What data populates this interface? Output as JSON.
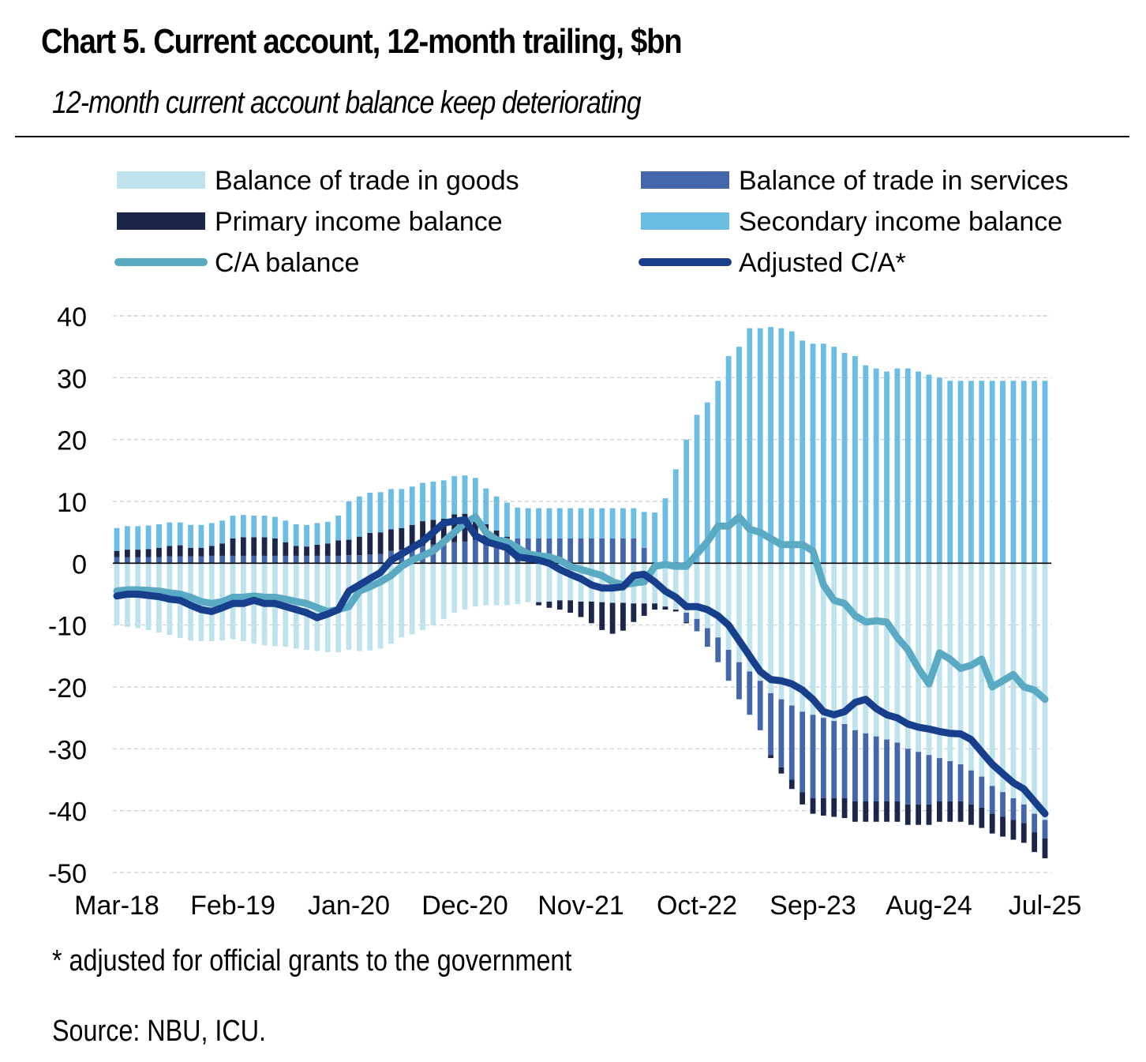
{
  "title": "Chart 5. Current account, 12-month trailing, $bn",
  "subtitle": "12-month current account balance keep deteriorating",
  "footnote": "* adjusted for official grants to the government",
  "source": "Source: NBU, ICU.",
  "chart_data": {
    "type": "bar",
    "stacked": true,
    "title": "Chart 5. Current account, 12-month trailing, $bn",
    "subtitle": "12-month current account balance keep deteriorating",
    "xlabel": "",
    "ylabel": "",
    "ylim": [
      -50,
      40
    ],
    "yticks": [
      40,
      30,
      20,
      10,
      0,
      -10,
      -20,
      -30,
      -40,
      -50
    ],
    "grid": true,
    "legend_position": "top",
    "x_tick_labels": [
      "Mar-18",
      "Feb-19",
      "Jan-20",
      "Dec-20",
      "Nov-21",
      "Oct-22",
      "Sep-23",
      "Aug-24",
      "Jul-25"
    ],
    "x_tick_label_indices": [
      0,
      11,
      22,
      33,
      44,
      55,
      66,
      77,
      88
    ],
    "period_start": "Mar-18",
    "period_end": "Jul-25",
    "series": [
      {
        "name": "Balance of trade in goods",
        "kind": "bar",
        "color": "#bfe3ec",
        "values": [
          -10.0,
          -10.3,
          -10.5,
          -10.8,
          -11.2,
          -11.6,
          -12.1,
          -12.5,
          -12.6,
          -12.6,
          -12.5,
          -12.3,
          -12.6,
          -13.0,
          -13.3,
          -13.4,
          -13.5,
          -13.8,
          -14.0,
          -14.2,
          -14.4,
          -14.4,
          -14.0,
          -14.2,
          -14.1,
          -13.8,
          -13.0,
          -12.0,
          -11.5,
          -10.8,
          -10.0,
          -9.0,
          -8.0,
          -7.5,
          -7.0,
          -6.8,
          -6.8,
          -6.8,
          -6.6,
          -6.3,
          -6.3,
          -6.2,
          -6.0,
          -6.0,
          -6.2,
          -6.2,
          -6.3,
          -6.4,
          -6.4,
          -6.5,
          -6.5,
          -6.5,
          -7.0,
          -7.5,
          -8.0,
          -9.0,
          -10.5,
          -12.0,
          -14.0,
          -16.0,
          -17.5,
          -19.0,
          -21.0,
          -22.0,
          -23.0,
          -24.0,
          -24.5,
          -25.0,
          -25.5,
          -26.0,
          -27.0,
          -27.5,
          -28.0,
          -28.5,
          -29.0,
          -30.0,
          -30.5,
          -31.0,
          -31.5,
          -32.0,
          -32.5,
          -33.5,
          -34.5,
          -36.0,
          -37.0,
          -38.0,
          -39.0,
          -40.5,
          -41.5
        ]
      },
      {
        "name": "Balance of trade in services",
        "kind": "bar",
        "color": "#4467ac",
        "values": [
          1.0,
          1.0,
          1.0,
          1.0,
          1.0,
          1.1,
          1.1,
          1.1,
          1.1,
          1.2,
          1.2,
          1.2,
          1.2,
          1.2,
          1.2,
          1.2,
          1.2,
          1.2,
          1.2,
          1.2,
          1.2,
          1.2,
          1.3,
          1.3,
          1.4,
          1.5,
          2.0,
          2.2,
          2.5,
          2.8,
          3.0,
          3.2,
          3.4,
          3.5,
          3.8,
          3.8,
          3.8,
          3.8,
          4.0,
          4.0,
          4.0,
          4.0,
          4.0,
          4.0,
          4.0,
          4.0,
          4.0,
          4.0,
          4.0,
          4.0,
          2.5,
          0.0,
          0.0,
          0.0,
          -1.5,
          -2.0,
          -3.0,
          -4.0,
          -5.0,
          -6.0,
          -7.0,
          -8.0,
          -10.0,
          -11.0,
          -12.0,
          -13.0,
          -13.5,
          -13.0,
          -12.5,
          -12.0,
          -11.5,
          -11.0,
          -10.5,
          -10.0,
          -9.5,
          -9.0,
          -8.5,
          -8.0,
          -7.0,
          -6.5,
          -6.0,
          -5.5,
          -5.0,
          -4.5,
          -4.0,
          -3.5,
          -3.0,
          -3.0,
          -3.0
        ]
      },
      {
        "name": "Primary income balance",
        "kind": "bar",
        "color": "#1c2649",
        "values": [
          1.0,
          1.2,
          1.2,
          1.3,
          1.5,
          1.7,
          1.8,
          1.4,
          1.4,
          1.6,
          2.0,
          2.8,
          3.0,
          3.0,
          3.0,
          2.8,
          2.2,
          1.6,
          1.5,
          1.8,
          2.0,
          2.5,
          2.5,
          3.0,
          3.5,
          3.5,
          3.5,
          3.5,
          3.7,
          4.0,
          4.0,
          4.0,
          4.5,
          4.5,
          3.8,
          2.5,
          1.5,
          0.5,
          0.0,
          0.0,
          -0.5,
          -1.0,
          -1.5,
          -2.0,
          -2.5,
          -3.5,
          -4.5,
          -5.0,
          -4.5,
          -3.0,
          -2.0,
          -1.0,
          -0.5,
          -0.3,
          -0.2,
          0.0,
          0.0,
          0.0,
          0.0,
          0.0,
          0.0,
          0.0,
          -0.5,
          -1.0,
          -1.5,
          -2.0,
          -2.5,
          -2.8,
          -3.0,
          -3.2,
          -3.3,
          -3.3,
          -3.3,
          -3.3,
          -3.3,
          -3.3,
          -3.3,
          -3.3,
          -3.3,
          -3.3,
          -3.3,
          -3.3,
          -3.3,
          -3.2,
          -3.2,
          -3.2,
          -3.2,
          -3.2,
          -3.2
        ]
      },
      {
        "name": "Secondary income balance",
        "kind": "bar",
        "color": "#6bbde3",
        "values": [
          3.7,
          3.8,
          3.8,
          3.8,
          3.8,
          3.8,
          3.7,
          3.7,
          3.7,
          3.7,
          3.7,
          3.7,
          3.6,
          3.5,
          3.5,
          3.5,
          3.5,
          3.5,
          3.5,
          3.5,
          3.5,
          4.0,
          6.2,
          6.5,
          6.5,
          6.5,
          6.5,
          6.3,
          6.2,
          6.2,
          6.2,
          6.2,
          6.2,
          6.2,
          6.2,
          5.8,
          5.5,
          5.5,
          5.0,
          4.9,
          4.9,
          4.9,
          4.9,
          4.9,
          4.9,
          4.9,
          4.9,
          4.9,
          4.9,
          4.9,
          5.8,
          8.2,
          10.5,
          15.2,
          20.0,
          24.0,
          26.0,
          29.5,
          33.5,
          35.0,
          38.0,
          38.0,
          38.2,
          38.0,
          37.5,
          36.0,
          35.5,
          35.5,
          35.0,
          34.0,
          33.5,
          32.0,
          31.5,
          31.0,
          31.5,
          31.5,
          31.0,
          30.5,
          30.0,
          29.5,
          29.5,
          29.5,
          29.5,
          29.5,
          29.5,
          29.5,
          29.5,
          29.5,
          29.5
        ]
      },
      {
        "name": "C/A balance",
        "kind": "line",
        "color": "#5aaac4",
        "values": [
          -4.5,
          -4.3,
          -4.3,
          -4.4,
          -4.5,
          -4.8,
          -5.0,
          -5.5,
          -6.2,
          -6.5,
          -6.2,
          -5.5,
          -5.5,
          -5.3,
          -5.5,
          -5.5,
          -5.8,
          -6.2,
          -6.5,
          -7.2,
          -7.8,
          -7.5,
          -7.0,
          -4.5,
          -3.8,
          -3.0,
          -2.0,
          -0.5,
          0.5,
          1.2,
          2.0,
          3.5,
          5.0,
          6.5,
          7.5,
          5.0,
          3.8,
          3.5,
          2.5,
          1.5,
          1.2,
          1.0,
          0.5,
          -0.5,
          -1.0,
          -1.5,
          -2.0,
          -3.0,
          -3.5,
          -3.2,
          -3.0,
          -0.5,
          -0.2,
          -0.5,
          -0.5,
          1.5,
          3.5,
          6.0,
          6.0,
          7.5,
          5.5,
          5.0,
          4.0,
          3.0,
          3.0,
          3.0,
          2.0,
          -3.5,
          -6.0,
          -6.5,
          -8.5,
          -9.5,
          -9.3,
          -9.5,
          -12.0,
          -14.0,
          -17.0,
          -19.5,
          -14.5,
          -15.5,
          -17.0,
          -16.5,
          -15.5,
          -20.0,
          -19.0,
          -18.0,
          -20.0,
          -20.5,
          -22.0
        ]
      },
      {
        "name": "Adjusted C/A*",
        "kind": "line",
        "color": "#173f8c",
        "values": [
          -5.3,
          -5.0,
          -5.0,
          -5.2,
          -5.4,
          -5.8,
          -6.0,
          -6.8,
          -7.5,
          -7.8,
          -7.2,
          -6.5,
          -6.5,
          -6.0,
          -6.5,
          -6.5,
          -7.0,
          -7.5,
          -8.0,
          -8.8,
          -8.2,
          -7.5,
          -4.5,
          -3.5,
          -2.5,
          -1.5,
          0.5,
          1.5,
          2.5,
          3.5,
          5.0,
          6.5,
          6.8,
          7.0,
          4.5,
          3.5,
          3.0,
          2.5,
          1.0,
          0.8,
          0.5,
          0.0,
          -1.0,
          -1.8,
          -2.5,
          -3.5,
          -4.0,
          -4.0,
          -3.8,
          -2.0,
          -1.8,
          -3.0,
          -4.5,
          -5.5,
          -7.0,
          -7.0,
          -7.5,
          -8.5,
          -10.0,
          -12.5,
          -15.0,
          -17.5,
          -18.8,
          -19.0,
          -19.5,
          -20.5,
          -22.0,
          -24.0,
          -24.5,
          -24.0,
          -22.5,
          -22.0,
          -23.5,
          -24.5,
          -25.0,
          -26.0,
          -26.5,
          -26.8,
          -27.2,
          -27.5,
          -27.6,
          -28.5,
          -30.5,
          -32.5,
          -34.0,
          -35.5,
          -36.5,
          -38.5,
          -40.5
        ]
      }
    ]
  }
}
